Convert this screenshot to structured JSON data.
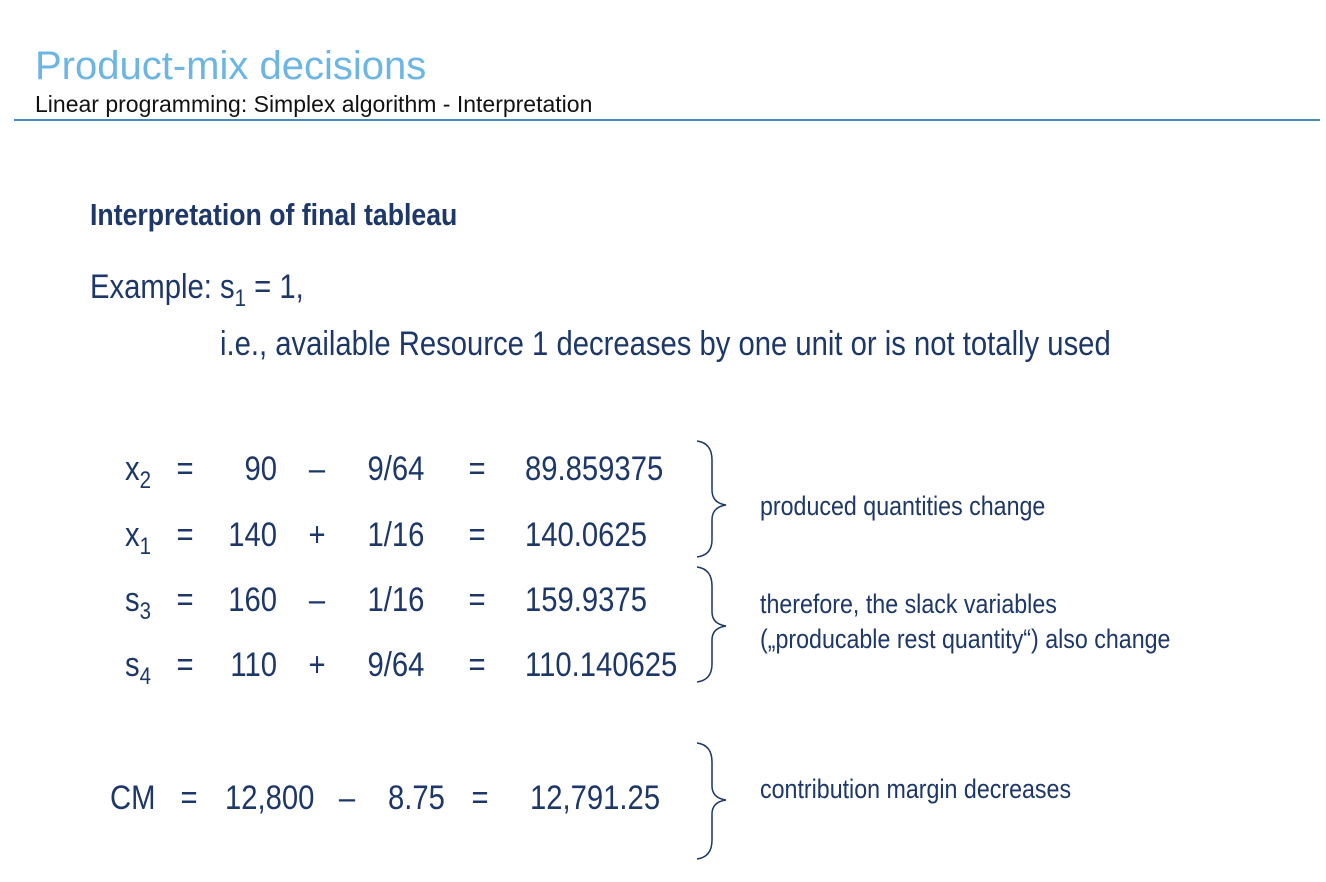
{
  "header": {
    "title": "Product-mix decisions",
    "subtitle": "Linear programming: Simplex algorithm - Interpretation"
  },
  "heading": "Interpretation of final tableau",
  "example": {
    "prefix": "Example: s",
    "sub": "1",
    "suffix": " = 1,",
    "explanation": "i.e., available Resource 1 decreases by one unit or is not totally used"
  },
  "equations": [
    {
      "var": "x",
      "sub": "2",
      "eq1": "=",
      "a": "90",
      "op": "–",
      "b": "9/64",
      "eq2": "=",
      "result": "89.859375"
    },
    {
      "var": "x",
      "sub": "1",
      "eq1": "=",
      "a": "140",
      "op": "+",
      "b": "1/16",
      "eq2": "=",
      "result": "140.0625"
    },
    {
      "var": "s",
      "sub": "3",
      "eq1": "=",
      "a": "160",
      "op": "–",
      "b": "1/16",
      "eq2": "=",
      "result": "159.9375"
    },
    {
      "var": "s",
      "sub": "4",
      "eq1": "=",
      "a": "110",
      "op": "+",
      "b": "9/64",
      "eq2": "=",
      "result": "110.140625"
    }
  ],
  "cm": {
    "var": "CM",
    "eq1": "=",
    "a": "12,800",
    "op": "–",
    "b": "8.75",
    "eq2": "=",
    "result": "12,791.25"
  },
  "notes": {
    "quantities": "produced quantities change",
    "slack1": "therefore, the slack variables",
    "slack2": "(„producable rest quantity“) also change",
    "margin": "contribution margin decreases"
  }
}
